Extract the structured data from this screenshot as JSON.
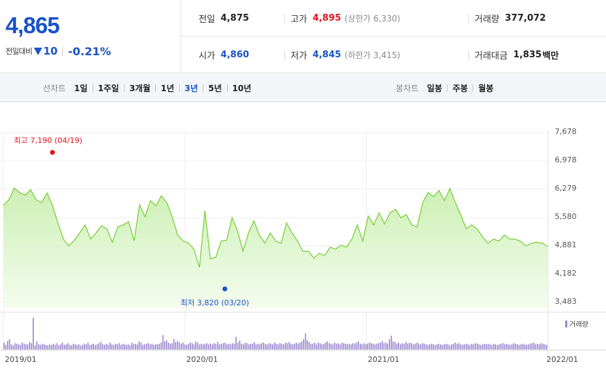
{
  "price": {
    "current": "4,865",
    "change_label": "전일대비",
    "change_direction": "down",
    "change_value": "10",
    "change_percent": "-0.21%"
  },
  "stats": {
    "prev_close": {
      "label": "전일",
      "value": "4,875"
    },
    "high": {
      "label": "고가",
      "value": "4,895",
      "limit_text": "(상한가 6,330)"
    },
    "volume": {
      "label": "거래량",
      "value": "377,072"
    },
    "open": {
      "label": "시가",
      "value": "4,860"
    },
    "low": {
      "label": "저가",
      "value": "4,845",
      "limit_text": "(하한가 3,415)"
    },
    "trade_amount": {
      "label": "거래대금",
      "value": "1,835",
      "unit": "백만"
    }
  },
  "line_chart_tabs": {
    "title": "선차트",
    "items": [
      "1일",
      "1주일",
      "3개월",
      "1년",
      "3년",
      "5년",
      "10년"
    ],
    "active": "3년"
  },
  "candle_chart_tabs": {
    "title": "봉차트",
    "items": [
      "일봉",
      "주봉",
      "월봉"
    ]
  },
  "chart_labels": {
    "high_marker": "최고 7,190 (04/19)",
    "low_marker": "최저 3,820 (03/20)",
    "volume_legend": "거래량"
  },
  "colors": {
    "up": "#e4141c",
    "down": "#1a53c9",
    "line": "#7ccf3e",
    "volume": "#9a84cf"
  },
  "chart_data": {
    "type": "area",
    "ylim": [
      3483,
      7678
    ],
    "yticks": [
      "7,678",
      "6,978",
      "6,279",
      "5,580",
      "4,881",
      "4,182",
      "3,483"
    ],
    "xticks": [
      "2019/01",
      "2020/01",
      "2021/01",
      "2022/01"
    ],
    "xrange": [
      "2019/01",
      "2022/01"
    ],
    "grid": true,
    "series": [
      {
        "x": [
          2019.0,
          2019.03,
          2019.06,
          2019.09,
          2019.12,
          2019.15,
          2019.18,
          2019.21,
          2019.24,
          2019.27,
          2019.3,
          2019.33,
          2019.36,
          2019.39,
          2019.42,
          2019.45,
          2019.48,
          2019.51,
          2019.54,
          2019.57,
          2019.6,
          2019.63,
          2019.66,
          2019.69,
          2019.72,
          2019.75,
          2019.78,
          2019.81,
          2019.84,
          2019.87,
          2019.9,
          2019.93,
          2019.96,
          2019.99,
          2020.02,
          2020.05,
          2020.08,
          2020.11,
          2020.14,
          2020.17,
          2020.2,
          2020.23,
          2020.26,
          2020.29,
          2020.32,
          2020.35,
          2020.38,
          2020.41,
          2020.44,
          2020.47,
          2020.5,
          2020.53,
          2020.56,
          2020.59,
          2020.62,
          2020.65,
          2020.68,
          2020.71,
          2020.74,
          2020.77,
          2020.8,
          2020.83,
          2020.86,
          2020.89,
          2020.92,
          2020.95,
          2020.98,
          2021.01,
          2021.04,
          2021.07,
          2021.1,
          2021.13,
          2021.16,
          2021.19,
          2021.22,
          2021.25,
          2021.28,
          2021.31,
          2021.34,
          2021.37,
          2021.4,
          2021.43,
          2021.46,
          2021.49,
          2021.52,
          2021.55,
          2021.58,
          2021.61,
          2021.64,
          2021.67,
          2021.7,
          2021.73,
          2021.76,
          2021.79,
          2021.82,
          2021.85,
          2021.88,
          2021.91,
          2021.94,
          2021.97,
          2022.0
        ],
        "y": [
          5880,
          6020,
          6310,
          6200,
          6140,
          6270,
          6020,
          5950,
          6190,
          5880,
          5450,
          5050,
          4880,
          5020,
          5200,
          5400,
          5050,
          5200,
          5380,
          5300,
          4970,
          5350,
          5400,
          5480,
          5010,
          5900,
          5600,
          6000,
          5870,
          6120,
          5950,
          5600,
          5150,
          5000,
          4950,
          4800,
          4350,
          5750,
          4560,
          4600,
          5000,
          5020,
          5580,
          5250,
          4750,
          5200,
          5500,
          5150,
          4950,
          5200,
          5000,
          4950,
          5450,
          5200,
          5000,
          4750,
          4750,
          4580,
          4700,
          4640,
          4850,
          4800,
          4900,
          4850,
          5050,
          5400,
          5000,
          5620,
          5400,
          5700,
          5420,
          5700,
          5780,
          5580,
          5650,
          5400,
          5350,
          5950,
          6200,
          6100,
          6250,
          6000,
          6300,
          5950,
          5650,
          5300,
          5400,
          5300,
          5100,
          4950,
          5050,
          5000,
          5150,
          5050,
          5050,
          4990,
          4880,
          4950,
          4970,
          4950,
          4865
        ]
      }
    ],
    "high_point": {
      "x": 2019.27,
      "y": 7190,
      "label": "최고 7,190 (04/19)"
    },
    "low_point": {
      "x": 2020.22,
      "y": 3820,
      "label": "최저 3,820 (03/20)"
    },
    "volume": [
      12,
      8,
      15,
      18,
      9,
      7,
      11,
      10,
      9,
      8,
      12,
      10,
      9,
      9,
      13,
      11,
      55,
      7,
      14,
      9,
      8,
      10,
      9,
      8,
      7,
      9,
      8,
      10,
      8,
      11,
      7,
      9,
      12,
      8,
      9,
      11,
      8,
      7,
      10,
      9,
      8,
      9,
      7,
      8,
      10,
      9,
      12,
      8,
      9,
      10,
      8,
      9,
      11,
      13,
      9,
      8,
      10,
      8,
      12,
      9,
      8,
      10,
      9,
      11,
      8,
      10,
      9,
      8,
      9,
      7,
      12,
      9,
      10,
      9,
      14,
      12,
      8,
      9,
      10,
      11,
      9,
      10,
      8,
      9,
      9,
      10,
      12,
      25,
      14,
      16,
      12,
      10,
      11,
      18,
      13,
      15,
      12,
      10,
      12,
      9,
      8,
      10,
      12,
      11,
      9,
      14,
      12,
      9,
      10,
      9,
      10,
      11,
      9,
      10,
      9,
      11,
      10,
      13,
      9,
      10,
      11,
      12,
      9,
      10,
      9,
      11,
      10,
      22,
      12,
      16,
      10,
      9,
      12,
      11,
      9,
      10,
      10,
      13,
      9,
      10,
      9,
      11,
      12,
      10,
      9,
      11,
      10,
      9,
      12,
      10,
      9,
      11,
      10,
      9,
      12,
      11,
      13,
      10,
      9,
      10,
      12,
      10,
      12,
      14,
      18,
      28,
      16,
      13,
      10,
      10,
      12,
      9,
      12,
      11,
      9,
      10,
      12,
      14,
      11,
      10,
      9,
      12,
      10,
      11,
      9,
      12,
      11,
      10,
      9,
      10,
      9,
      11,
      10,
      12,
      14,
      10,
      9,
      11,
      9,
      10,
      12,
      11,
      10,
      9,
      10,
      11,
      12,
      15,
      11,
      12,
      10,
      18,
      24,
      14,
      13,
      10,
      12,
      9,
      11,
      10,
      13,
      10,
      12,
      11,
      9,
      10,
      12,
      10,
      9,
      11,
      10,
      9,
      8,
      9,
      10,
      9,
      8,
      9,
      10,
      9,
      8,
      9,
      10,
      9,
      7,
      9,
      10,
      12,
      10,
      11,
      9,
      8,
      9,
      10,
      9,
      8,
      10,
      9,
      11,
      10,
      9,
      8,
      9,
      10,
      9,
      10,
      9,
      8,
      10,
      9,
      8,
      9,
      10,
      11,
      9,
      10,
      9,
      8,
      9,
      11,
      10,
      9,
      8,
      9,
      10,
      9,
      8,
      9,
      10,
      11,
      12,
      9,
      10,
      9,
      11,
      10,
      9,
      8
    ]
  }
}
